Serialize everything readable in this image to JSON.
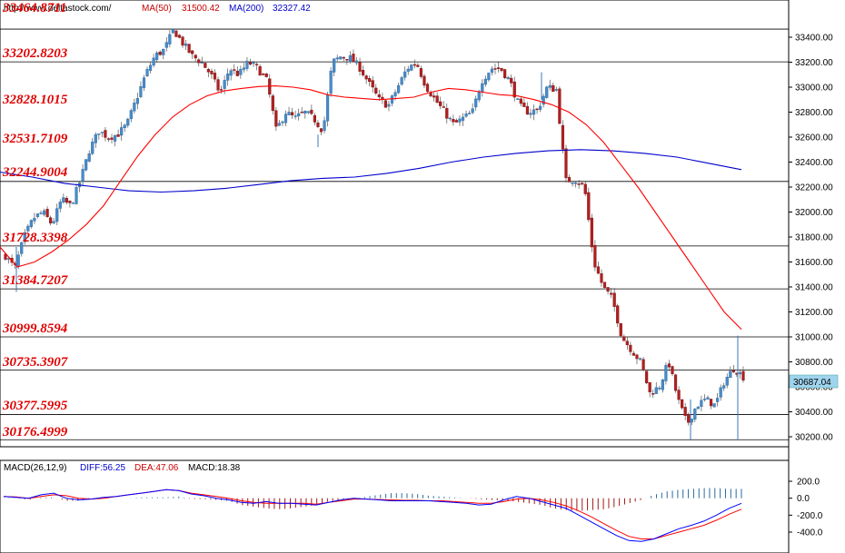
{
  "header": {
    "source": "http://www.deltastock.com/",
    "ma50_label": "MA(50)",
    "ma50_value": "31500.42",
    "ma200_label": "MA(200)",
    "ma200_value": "32327.42",
    "macd_label": "MACD(26,12,9)",
    "diff_label": "DIFF:56.25",
    "dea_label": "DEA:47.06",
    "macd_value_label": "MACD:18.38"
  },
  "colors": {
    "ma50": "#ff0000",
    "ma200": "#0000cc",
    "bull": "#4a8ac8",
    "bear": "#b02020",
    "level": "#e00000",
    "price_tag": "#9fd4ef"
  },
  "chart_data": [
    {
      "type": "candlestick",
      "title": "",
      "price_axis": {
        "ticks": [
          "33400.00",
          "33200.00",
          "33000.00",
          "32800.00",
          "32600.00",
          "32400.00",
          "32200.00",
          "32000.00",
          "31800.00",
          "31600.00",
          "31400.00",
          "31200.00",
          "31000.00",
          "30800.00",
          "30600.00",
          "30400.00",
          "30200.00"
        ],
        "range": [
          30100,
          33560
        ]
      },
      "current_price": "30687.04",
      "levels": [
        "33464.8711",
        "33202.8203",
        "32828.1015",
        "32531.7109",
        "32244.9004",
        "31728.3398",
        "31384.7207",
        "30999.8594",
        "30735.3907",
        "30377.5995",
        "30176.4999"
      ],
      "horizontal_lines": [
        33464.87,
        33202.82,
        32244.9,
        31728.34,
        31384.72,
        30999.86,
        30735.39,
        30377.6,
        30176.5
      ],
      "price_path": [
        31650,
        31550,
        31800,
        31950,
        32000,
        31900,
        32100,
        32050,
        32250,
        32500,
        32650,
        32600,
        32620,
        32700,
        32900,
        33100,
        33250,
        33300,
        33460,
        33350,
        33250,
        33200,
        33100,
        32950,
        33150,
        33100,
        33200,
        33150,
        33050,
        32650,
        32800,
        32750,
        32800,
        32750,
        32650,
        33200,
        33250,
        33230,
        33150,
        33020,
        32900,
        32850,
        33000,
        33150,
        33200,
        33010,
        32900,
        32800,
        32700,
        32750,
        32800,
        33050,
        33150,
        33150,
        33050,
        32850,
        32800,
        32820,
        33000,
        32980,
        32250,
        32260,
        32200,
        31600,
        31400,
        31300,
        31000,
        30900,
        30800,
        30550,
        30600,
        30800,
        30500,
        30300,
        30450,
        30500,
        30450,
        30650,
        30750,
        30680
      ],
      "ma50": [
        31720,
        31560,
        31600,
        31680,
        31780,
        31900,
        32050,
        32250,
        32450,
        32620,
        32760,
        32860,
        32930,
        32970,
        32990,
        33005,
        33010,
        33000,
        32980,
        32940,
        32920,
        32910,
        32900,
        32910,
        32920,
        32960,
        32990,
        32980,
        32960,
        32940,
        32930,
        32900,
        32860,
        32800,
        32700,
        32560,
        32380,
        32200,
        32000,
        31800,
        31600,
        31400,
        31200,
        31060
      ],
      "ma200": [
        32320,
        32280,
        32230,
        32200,
        32170,
        32160,
        32170,
        32190,
        32220,
        32250,
        32270,
        32280,
        32310,
        32350,
        32400,
        32440,
        32470,
        32490,
        32500,
        32490,
        32470,
        32440,
        32390,
        32340
      ]
    },
    {
      "type": "line+histogram",
      "title": "",
      "axis": {
        "ticks": [
          "200.0",
          "0.0",
          "-200.0",
          "-400.0"
        ],
        "range": [
          -520,
          260
        ]
      },
      "diff": [
        20,
        10,
        0,
        40,
        60,
        0,
        -20,
        -10,
        10,
        20,
        40,
        60,
        80,
        100,
        90,
        50,
        30,
        0,
        -20,
        -50,
        -60,
        -40,
        -60,
        -60,
        -70,
        -80,
        -50,
        -20,
        0,
        -10,
        -20,
        -30,
        -30,
        -30,
        -30,
        -40,
        -50,
        -60,
        -80,
        -70,
        -20,
        20,
        0,
        -40,
        -80,
        -120,
        -200,
        -280,
        -360,
        -440,
        -500,
        -510,
        -480,
        -420,
        -360,
        -320,
        -270,
        -200,
        -120,
        -60
      ],
      "dea": [
        20,
        15,
        0,
        20,
        40,
        30,
        0,
        -10,
        0,
        20,
        40,
        60,
        80,
        100,
        90,
        60,
        40,
        20,
        0,
        -30,
        -50,
        -60,
        -60,
        -60,
        -60,
        -70,
        -50,
        -30,
        -10,
        -10,
        -15,
        -20,
        -25,
        -25,
        -30,
        -30,
        -40,
        -50,
        -60,
        -60,
        -40,
        -10,
        0,
        -20,
        -50,
        -90,
        -150,
        -220,
        -300,
        -380,
        -450,
        -480,
        -480,
        -440,
        -400,
        -360,
        -320,
        -260,
        -190,
        -130
      ],
      "hist": [
        5,
        4,
        -20,
        10,
        10,
        -30,
        -30,
        -10,
        0,
        0,
        0,
        10,
        10,
        10,
        20,
        -10,
        -10,
        -20,
        -30,
        -80,
        -100,
        -120,
        -130,
        -120,
        -100,
        -80,
        -40,
        -20,
        -10,
        20,
        40,
        60,
        60,
        50,
        30,
        20,
        10,
        0,
        -10,
        -20,
        -30,
        -40,
        -60,
        -80,
        -120,
        -140,
        -150,
        -140,
        -130,
        -100,
        -60,
        -20,
        40,
        80,
        100,
        110,
        120,
        120,
        110,
        110
      ]
    }
  ]
}
